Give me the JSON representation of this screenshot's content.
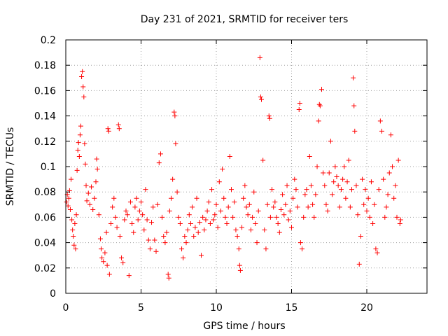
{
  "chart_data": {
    "type": "scatter",
    "title": "Day 231 of 2021, SRMTID for receiver ters",
    "xlabel": "GPS time / hours",
    "ylabel": "SRMTID / TECUs",
    "xlim": [
      0,
      24
    ],
    "ylim": [
      0,
      0.2
    ],
    "xticks": [
      0,
      5,
      10,
      15,
      20
    ],
    "xtick_labels": [
      "0",
      "5",
      "10",
      "15",
      "20"
    ],
    "yticks": [
      0,
      0.02,
      0.04,
      0.06,
      0.08,
      0.1,
      0.12,
      0.14,
      0.16,
      0.18,
      0.2
    ],
    "ytick_labels": [
      "0",
      "0.02",
      "0.04",
      "0.06",
      "0.08",
      "0.1",
      "0.12",
      "0.14",
      "0.16",
      "0.18",
      "0.2"
    ],
    "grid": true,
    "marker": "+",
    "color": "#ff0000",
    "series": [
      {
        "name": "SRMTID",
        "points": [
          [
            0.05,
            0.072
          ],
          [
            0.1,
            0.078
          ],
          [
            0.15,
            0.069
          ],
          [
            0.2,
            0.075
          ],
          [
            0.25,
            0.081
          ],
          [
            0.3,
            0.066
          ],
          [
            0.35,
            0.09
          ],
          [
            0.4,
            0.058
          ],
          [
            0.45,
            0.05
          ],
          [
            0.5,
            0.045
          ],
          [
            0.55,
            0.038
          ],
          [
            0.6,
            0.055
          ],
          [
            0.65,
            0.035
          ],
          [
            0.7,
            0.062
          ],
          [
            0.75,
            0.097
          ],
          [
            0.8,
            0.113
          ],
          [
            0.85,
            0.119
          ],
          [
            0.9,
            0.108
          ],
          [
            0.95,
            0.125
          ],
          [
            1.0,
            0.132
          ],
          [
            1.05,
            0.171
          ],
          [
            1.1,
            0.175
          ],
          [
            1.15,
            0.163
          ],
          [
            1.2,
            0.155
          ],
          [
            1.25,
            0.118
          ],
          [
            1.3,
            0.102
          ],
          [
            1.35,
            0.085
          ],
          [
            1.4,
            0.073
          ],
          [
            1.5,
            0.079
          ],
          [
            1.6,
            0.07
          ],
          [
            1.7,
            0.084
          ],
          [
            1.8,
            0.066
          ],
          [
            1.9,
            0.075
          ],
          [
            2.0,
            0.088
          ],
          [
            2.05,
            0.106
          ],
          [
            2.1,
            0.098
          ],
          [
            2.2,
            0.062
          ],
          [
            2.3,
            0.043
          ],
          [
            2.35,
            0.035
          ],
          [
            2.4,
            0.028
          ],
          [
            2.5,
            0.025
          ],
          [
            2.6,
            0.032
          ],
          [
            2.7,
            0.048
          ],
          [
            2.75,
            0.022
          ],
          [
            2.8,
            0.13
          ],
          [
            2.85,
            0.128
          ],
          [
            2.9,
            0.015
          ],
          [
            3.0,
            0.055
          ],
          [
            3.1,
            0.068
          ],
          [
            3.2,
            0.075
          ],
          [
            3.3,
            0.06
          ],
          [
            3.4,
            0.052
          ],
          [
            3.5,
            0.133
          ],
          [
            3.55,
            0.13
          ],
          [
            3.6,
            0.045
          ],
          [
            3.7,
            0.028
          ],
          [
            3.8,
            0.024
          ],
          [
            3.9,
            0.058
          ],
          [
            4.0,
            0.065
          ],
          [
            4.1,
            0.062
          ],
          [
            4.2,
            0.014
          ],
          [
            4.3,
            0.072
          ],
          [
            4.4,
            0.055
          ],
          [
            4.5,
            0.048
          ],
          [
            4.6,
            0.068
          ],
          [
            4.7,
            0.075
          ],
          [
            4.8,
            0.058
          ],
          [
            4.9,
            0.065
          ],
          [
            5.0,
            0.072
          ],
          [
            5.1,
            0.062
          ],
          [
            5.2,
            0.05
          ],
          [
            5.3,
            0.082
          ],
          [
            5.4,
            0.058
          ],
          [
            5.5,
            0.042
          ],
          [
            5.6,
            0.035
          ],
          [
            5.7,
            0.056
          ],
          [
            5.8,
            0.068
          ],
          [
            5.9,
            0.042
          ],
          [
            6.0,
            0.033
          ],
          [
            6.1,
            0.07
          ],
          [
            6.2,
            0.103
          ],
          [
            6.3,
            0.11
          ],
          [
            6.4,
            0.06
          ],
          [
            6.5,
            0.045
          ],
          [
            6.6,
            0.04
          ],
          [
            6.7,
            0.048
          ],
          [
            6.8,
            0.015
          ],
          [
            6.85,
            0.012
          ],
          [
            6.9,
            0.065
          ],
          [
            7.0,
            0.075
          ],
          [
            7.1,
            0.09
          ],
          [
            7.2,
            0.143
          ],
          [
            7.25,
            0.14
          ],
          [
            7.3,
            0.118
          ],
          [
            7.4,
            0.08
          ],
          [
            7.5,
            0.06
          ],
          [
            7.6,
            0.055
          ],
          [
            7.7,
            0.035
          ],
          [
            7.8,
            0.028
          ],
          [
            7.9,
            0.045
          ],
          [
            8.0,
            0.04
          ],
          [
            8.1,
            0.05
          ],
          [
            8.2,
            0.062
          ],
          [
            8.3,
            0.055
          ],
          [
            8.4,
            0.068
          ],
          [
            8.5,
            0.045
          ],
          [
            8.6,
            0.052
          ],
          [
            8.7,
            0.075
          ],
          [
            8.8,
            0.048
          ],
          [
            8.9,
            0.056
          ],
          [
            9.0,
            0.03
          ],
          [
            9.1,
            0.06
          ],
          [
            9.2,
            0.05
          ],
          [
            9.3,
            0.058
          ],
          [
            9.4,
            0.065
          ],
          [
            9.5,
            0.072
          ],
          [
            9.6,
            0.055
          ],
          [
            9.7,
            0.082
          ],
          [
            9.8,
            0.058
          ],
          [
            9.9,
            0.062
          ],
          [
            10.0,
            0.07
          ],
          [
            10.1,
            0.052
          ],
          [
            10.2,
            0.088
          ],
          [
            10.3,
            0.065
          ],
          [
            10.4,
            0.098
          ],
          [
            10.5,
            0.075
          ],
          [
            10.6,
            0.06
          ],
          [
            10.7,
            0.055
          ],
          [
            10.8,
            0.068
          ],
          [
            10.9,
            0.108
          ],
          [
            11.0,
            0.082
          ],
          [
            11.1,
            0.06
          ],
          [
            11.2,
            0.072
          ],
          [
            11.3,
            0.05
          ],
          [
            11.4,
            0.045
          ],
          [
            11.5,
            0.035
          ],
          [
            11.55,
            0.022
          ],
          [
            11.6,
            0.018
          ],
          [
            11.7,
            0.052
          ],
          [
            11.8,
            0.075
          ],
          [
            11.9,
            0.085
          ],
          [
            12.0,
            0.068
          ],
          [
            12.1,
            0.062
          ],
          [
            12.2,
            0.07
          ],
          [
            12.3,
            0.05
          ],
          [
            12.4,
            0.06
          ],
          [
            12.5,
            0.08
          ],
          [
            12.6,
            0.055
          ],
          [
            12.7,
            0.04
          ],
          [
            12.8,
            0.065
          ],
          [
            12.9,
            0.186
          ],
          [
            12.95,
            0.155
          ],
          [
            13.0,
            0.153
          ],
          [
            13.1,
            0.105
          ],
          [
            13.2,
            0.05
          ],
          [
            13.3,
            0.035
          ],
          [
            13.4,
            0.07
          ],
          [
            13.5,
            0.14
          ],
          [
            13.55,
            0.138
          ],
          [
            13.6,
            0.06
          ],
          [
            13.7,
            0.082
          ],
          [
            13.8,
            0.068
          ],
          [
            13.9,
            0.072
          ],
          [
            14.0,
            0.06
          ],
          [
            14.1,
            0.055
          ],
          [
            14.2,
            0.048
          ],
          [
            14.3,
            0.066
          ],
          [
            14.4,
            0.078
          ],
          [
            14.5,
            0.062
          ],
          [
            14.6,
            0.07
          ],
          [
            14.7,
            0.085
          ],
          [
            14.8,
            0.058
          ],
          [
            14.9,
            0.065
          ],
          [
            15.0,
            0.052
          ],
          [
            15.1,
            0.075
          ],
          [
            15.2,
            0.09
          ],
          [
            15.3,
            0.082
          ],
          [
            15.4,
            0.068
          ],
          [
            15.5,
            0.145
          ],
          [
            15.55,
            0.15
          ],
          [
            15.6,
            0.04
          ],
          [
            15.7,
            0.035
          ],
          [
            15.8,
            0.06
          ],
          [
            15.9,
            0.078
          ],
          [
            16.0,
            0.082
          ],
          [
            16.1,
            0.068
          ],
          [
            16.2,
            0.108
          ],
          [
            16.3,
            0.085
          ],
          [
            16.4,
            0.07
          ],
          [
            16.5,
            0.06
          ],
          [
            16.6,
            0.078
          ],
          [
            16.7,
            0.1
          ],
          [
            16.8,
            0.136
          ],
          [
            16.85,
            0.149
          ],
          [
            16.9,
            0.148
          ],
          [
            17.0,
            0.161
          ],
          [
            17.1,
            0.095
          ],
          [
            17.2,
            0.085
          ],
          [
            17.3,
            0.07
          ],
          [
            17.4,
            0.065
          ],
          [
            17.5,
            0.095
          ],
          [
            17.6,
            0.12
          ],
          [
            17.7,
            0.078
          ],
          [
            17.8,
            0.088
          ],
          [
            17.9,
            0.1
          ],
          [
            18.0,
            0.092
          ],
          [
            18.1,
            0.085
          ],
          [
            18.2,
            0.068
          ],
          [
            18.3,
            0.082
          ],
          [
            18.4,
            0.09
          ],
          [
            18.5,
            0.1
          ],
          [
            18.6,
            0.075
          ],
          [
            18.7,
            0.088
          ],
          [
            18.8,
            0.105
          ],
          [
            18.9,
            0.068
          ],
          [
            19.0,
            0.082
          ],
          [
            19.1,
            0.17
          ],
          [
            19.15,
            0.148
          ],
          [
            19.2,
            0.128
          ],
          [
            19.3,
            0.085
          ],
          [
            19.4,
            0.062
          ],
          [
            19.5,
            0.023
          ],
          [
            19.6,
            0.045
          ],
          [
            19.7,
            0.09
          ],
          [
            19.8,
            0.07
          ],
          [
            19.9,
            0.082
          ],
          [
            20.0,
            0.065
          ],
          [
            20.1,
            0.075
          ],
          [
            20.2,
            0.06
          ],
          [
            20.3,
            0.088
          ],
          [
            20.4,
            0.055
          ],
          [
            20.5,
            0.07
          ],
          [
            20.6,
            0.035
          ],
          [
            20.7,
            0.032
          ],
          [
            20.8,
            0.082
          ],
          [
            20.9,
            0.136
          ],
          [
            21.0,
            0.128
          ],
          [
            21.1,
            0.09
          ],
          [
            21.2,
            0.06
          ],
          [
            21.3,
            0.068
          ],
          [
            21.4,
            0.078
          ],
          [
            21.5,
            0.095
          ],
          [
            21.6,
            0.125
          ],
          [
            21.7,
            0.1
          ],
          [
            21.8,
            0.075
          ],
          [
            21.9,
            0.085
          ],
          [
            22.0,
            0.06
          ],
          [
            22.1,
            0.105
          ],
          [
            22.2,
            0.055
          ],
          [
            22.25,
            0.058
          ]
        ]
      }
    ]
  }
}
